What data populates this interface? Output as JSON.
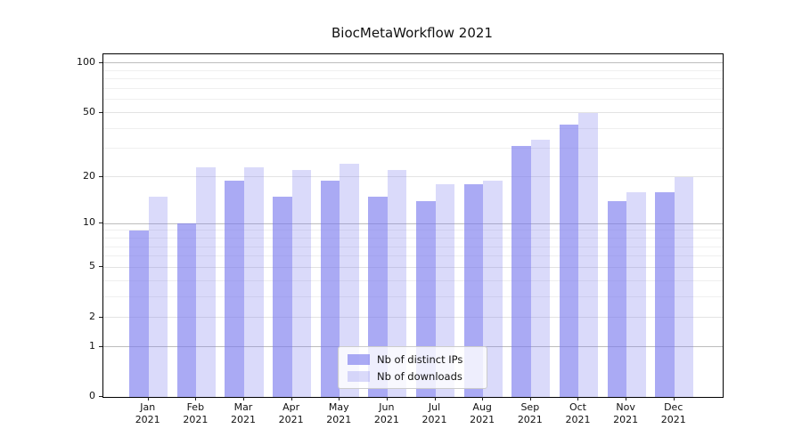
{
  "title": "BiocMetaWorkflow 2021",
  "chart_data": {
    "type": "bar",
    "title": "BiocMetaWorkflow 2021",
    "categories": [
      "Jan 2021",
      "Feb 2021",
      "Mar 2021",
      "Apr 2021",
      "May 2021",
      "Jun 2021",
      "Jul 2021",
      "Aug 2021",
      "Sep 2021",
      "Oct 2021",
      "Nov 2021",
      "Dec 2021"
    ],
    "series": [
      {
        "name": "Nb of distinct IPs",
        "color": "#7979ed",
        "alpha": 0.63,
        "values": [
          9,
          10,
          19,
          15,
          19,
          15,
          14,
          18,
          31,
          42,
          14,
          16
        ]
      },
      {
        "name": "Nb of downloads",
        "color": "#7979ed",
        "alpha": 0.28,
        "values": [
          15,
          23,
          23,
          22,
          24,
          22,
          18,
          19,
          34,
          50,
          16,
          20
        ]
      }
    ],
    "yscale": "log1p",
    "ylim": [
      0,
      100
    ],
    "yticks": [
      0,
      1,
      2,
      5,
      10,
      20,
      50,
      100
    ],
    "ygrid": {
      "major": [
        1,
        10,
        100
      ],
      "mid": [
        2,
        5,
        20,
        50
      ],
      "minor": [
        3,
        4,
        6,
        7,
        8,
        9,
        30,
        40,
        60,
        70,
        80,
        90
      ]
    },
    "grid_colors": {
      "major": "#bdbdbd",
      "mid": "#e3e3e3",
      "minor": "#efefef"
    },
    "axis_color": "#000000",
    "legend": {
      "position": "lower center",
      "labels": [
        "Nb of distinct IPs",
        "Nb of downloads"
      ]
    }
  }
}
